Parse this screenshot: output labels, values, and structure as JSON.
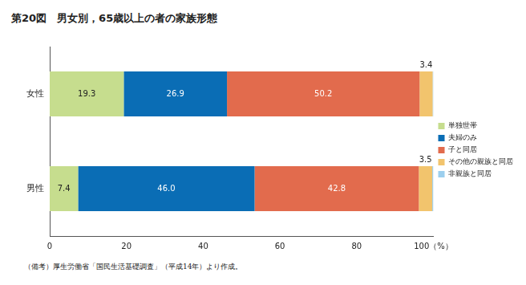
{
  "chart_data": {
    "type": "bar",
    "title": "第20図　男女別，65歳以上の者の家族形態",
    "note": "（備考）厚生労働省「国民生活基礎調査」（平成14年）より作成。",
    "orientation": "horizontal",
    "stacked": true,
    "categories": [
      "女性",
      "男性"
    ],
    "series": [
      {
        "name": "単独世帯",
        "color": "#c6dd8e",
        "values": [
          19.3,
          7.4
        ]
      },
      {
        "name": "夫婦のみ",
        "color": "#0a6db5",
        "values": [
          26.9,
          46.0
        ],
        "value_labels": [
          "26.9",
          "46.0"
        ]
      },
      {
        "name": "子と同居",
        "color": "#e26b4d",
        "values": [
          50.2,
          42.8
        ]
      },
      {
        "name": "その他の親族と同居",
        "color": "#f2c46d",
        "values": [
          3.4,
          3.5
        ]
      },
      {
        "name": "非親族と同居",
        "color": "#9ccfee",
        "values": [
          0.2,
          0.3
        ],
        "value_labels": [
          null,
          null
        ]
      }
    ],
    "xlim": [
      0,
      100
    ],
    "xticks": [
      0,
      20,
      40,
      60,
      80,
      {
        "value": 100,
        "label": "100（%）"
      }
    ],
    "grid": false,
    "legend": "right",
    "data_labels": true
  }
}
